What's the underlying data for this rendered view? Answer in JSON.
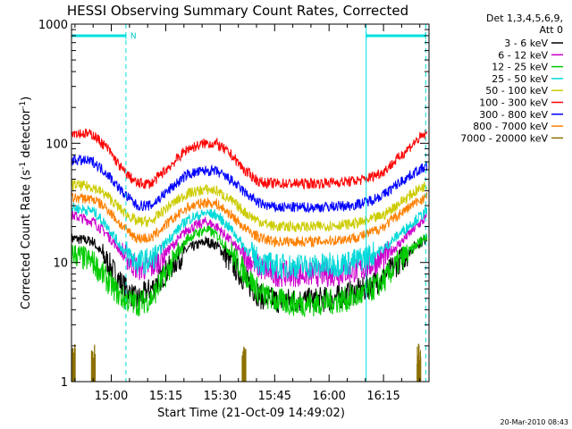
{
  "chart_data": {
    "type": "line",
    "title": "HESSI Observing Summary Count Rates, Corrected",
    "xlabel": "Start Time (21-Oct-09 14:49:02)",
    "ylabel_main": "Corrected Count Rate (s",
    "ylabel_sup1": "-1",
    "ylabel_mid": " detector",
    "ylabel_sup2": "-1",
    "ylabel_end": ")",
    "y_scale": "log",
    "ylim": [
      1,
      1000
    ],
    "xlim_minutes": [
      0,
      98.5
    ],
    "grid": false,
    "legend_placement": "right-outside",
    "footer_date": "20-Mar-2010 08:43",
    "legend_header": [
      "Det 1,3,4,5,6,9,",
      "Att 0"
    ],
    "x_ticks": [
      {
        "label": "15:00",
        "minutes": 10.97
      },
      {
        "label": "15:15",
        "minutes": 25.97
      },
      {
        "label": "15:30",
        "minutes": 40.97
      },
      {
        "label": "15:45",
        "minutes": 55.97
      },
      {
        "label": "16:00",
        "minutes": 70.97
      },
      {
        "label": "16:15",
        "minutes": 85.97
      }
    ],
    "y_ticks": [
      {
        "label": "1",
        "value": 1
      },
      {
        "label": "10",
        "value": 10
      },
      {
        "label": "100",
        "value": 100
      },
      {
        "label": "1000",
        "value": 1000
      }
    ],
    "night_boundaries_minutes": [
      0,
      15,
      81.2,
      97.6
    ],
    "flag_bars": [
      {
        "start_minutes": 0,
        "end_minutes": 15,
        "label": "N"
      },
      {
        "start_minutes": 81.2,
        "end_minutes": 97.6,
        "label": ""
      }
    ],
    "series": [
      {
        "name": "3 - 6 keV",
        "color": "#000000",
        "points": [
          [
            0,
            16
          ],
          [
            6,
            15
          ],
          [
            10,
            10
          ],
          [
            14,
            6.5
          ],
          [
            18,
            4.8
          ],
          [
            22,
            6
          ],
          [
            27,
            9
          ],
          [
            32,
            13
          ],
          [
            37,
            15
          ],
          [
            40,
            14
          ],
          [
            44,
            10
          ],
          [
            48,
            7
          ],
          [
            52,
            5.2
          ],
          [
            56,
            4.8
          ],
          [
            62,
            4.8
          ],
          [
            67,
            4.8
          ],
          [
            72,
            5
          ],
          [
            77,
            5.5
          ],
          [
            81,
            6
          ],
          [
            86,
            7.5
          ],
          [
            90,
            10
          ],
          [
            95,
            14
          ],
          [
            98,
            16
          ]
        ]
      },
      {
        "name": "6 - 12 keV",
        "color": "#cc00cc",
        "points": [
          [
            0,
            25
          ],
          [
            6,
            22
          ],
          [
            10,
            17
          ],
          [
            14,
            12
          ],
          [
            18,
            9
          ],
          [
            22,
            9
          ],
          [
            27,
            13
          ],
          [
            32,
            19
          ],
          [
            37,
            22
          ],
          [
            40,
            20
          ],
          [
            44,
            15
          ],
          [
            48,
            11
          ],
          [
            52,
            9
          ],
          [
            56,
            8
          ],
          [
            62,
            8
          ],
          [
            67,
            8
          ],
          [
            72,
            8
          ],
          [
            77,
            8.5
          ],
          [
            81,
            9
          ],
          [
            86,
            11
          ],
          [
            90,
            14
          ],
          [
            95,
            20
          ],
          [
            98,
            24
          ]
        ]
      },
      {
        "name": "12 - 25 keV",
        "color": "#00cc00",
        "points": [
          [
            0,
            12
          ],
          [
            6,
            10
          ],
          [
            10,
            7
          ],
          [
            14,
            5
          ],
          [
            18,
            4.5
          ],
          [
            22,
            5
          ],
          [
            27,
            9
          ],
          [
            32,
            16
          ],
          [
            37,
            19
          ],
          [
            40,
            17
          ],
          [
            44,
            12
          ],
          [
            48,
            8
          ],
          [
            52,
            5.5
          ],
          [
            56,
            4.8
          ],
          [
            62,
            4.5
          ],
          [
            67,
            4.5
          ],
          [
            72,
            4.7
          ],
          [
            77,
            5
          ],
          [
            81,
            5.5
          ],
          [
            86,
            7
          ],
          [
            90,
            10
          ],
          [
            95,
            14
          ],
          [
            98,
            17
          ]
        ]
      },
      {
        "name": "25 - 50 keV",
        "color": "#00d8d8",
        "points": [
          [
            0,
            29
          ],
          [
            6,
            27
          ],
          [
            10,
            20
          ],
          [
            14,
            13
          ],
          [
            18,
            10
          ],
          [
            22,
            10.5
          ],
          [
            27,
            16
          ],
          [
            32,
            23
          ],
          [
            37,
            26
          ],
          [
            40,
            25
          ],
          [
            44,
            19
          ],
          [
            48,
            13
          ],
          [
            52,
            10
          ],
          [
            56,
            9.3
          ],
          [
            62,
            9.3
          ],
          [
            67,
            9.3
          ],
          [
            72,
            9.5
          ],
          [
            77,
            10
          ],
          [
            81,
            11
          ],
          [
            86,
            13
          ],
          [
            90,
            17
          ],
          [
            95,
            23
          ],
          [
            98,
            27
          ]
        ]
      },
      {
        "name": "50 - 100 keV",
        "color": "#cccc00",
        "points": [
          [
            0,
            45
          ],
          [
            6,
            43
          ],
          [
            10,
            36
          ],
          [
            14,
            27
          ],
          [
            18,
            22
          ],
          [
            22,
            22
          ],
          [
            27,
            30
          ],
          [
            32,
            38
          ],
          [
            37,
            41
          ],
          [
            40,
            40
          ],
          [
            44,
            33
          ],
          [
            48,
            26
          ],
          [
            52,
            22
          ],
          [
            56,
            20
          ],
          [
            62,
            20
          ],
          [
            67,
            20
          ],
          [
            72,
            20.5
          ],
          [
            77,
            21
          ],
          [
            81,
            22
          ],
          [
            86,
            25
          ],
          [
            90,
            31
          ],
          [
            95,
            40
          ],
          [
            98,
            45
          ]
        ]
      },
      {
        "name": "100 - 300 keV",
        "color": "#ff0000",
        "points": [
          [
            0,
            125
          ],
          [
            6,
            118
          ],
          [
            10,
            90
          ],
          [
            14,
            60
          ],
          [
            18,
            46
          ],
          [
            22,
            46
          ],
          [
            27,
            64
          ],
          [
            32,
            90
          ],
          [
            37,
            100
          ],
          [
            40,
            99
          ],
          [
            44,
            80
          ],
          [
            48,
            58
          ],
          [
            52,
            47
          ],
          [
            56,
            46
          ],
          [
            62,
            46
          ],
          [
            67,
            46
          ],
          [
            72,
            47
          ],
          [
            77,
            48
          ],
          [
            81,
            50
          ],
          [
            86,
            58
          ],
          [
            90,
            75
          ],
          [
            95,
            105
          ],
          [
            98,
            122
          ]
        ]
      },
      {
        "name": "300 - 800 keV",
        "color": "#0000ff",
        "points": [
          [
            0,
            73
          ],
          [
            6,
            70
          ],
          [
            10,
            55
          ],
          [
            14,
            39
          ],
          [
            18,
            30
          ],
          [
            22,
            30
          ],
          [
            27,
            41
          ],
          [
            32,
            55
          ],
          [
            37,
            59
          ],
          [
            40,
            58
          ],
          [
            44,
            49
          ],
          [
            48,
            38
          ],
          [
            52,
            31
          ],
          [
            56,
            29
          ],
          [
            62,
            29
          ],
          [
            67,
            29
          ],
          [
            72,
            29.5
          ],
          [
            77,
            30
          ],
          [
            81,
            32
          ],
          [
            86,
            37
          ],
          [
            90,
            46
          ],
          [
            95,
            58
          ],
          [
            98,
            64
          ]
        ]
      },
      {
        "name": "800 - 7000 keV",
        "color": "#ff8000",
        "points": [
          [
            0,
            35
          ],
          [
            6,
            34
          ],
          [
            10,
            28
          ],
          [
            14,
            20
          ],
          [
            18,
            16
          ],
          [
            22,
            16
          ],
          [
            27,
            22
          ],
          [
            32,
            29
          ],
          [
            37,
            32
          ],
          [
            40,
            31
          ],
          [
            44,
            25
          ],
          [
            48,
            19
          ],
          [
            52,
            16
          ],
          [
            56,
            15
          ],
          [
            62,
            15
          ],
          [
            67,
            15
          ],
          [
            72,
            15.3
          ],
          [
            77,
            16
          ],
          [
            81,
            17
          ],
          [
            86,
            20
          ],
          [
            90,
            25
          ],
          [
            95,
            32
          ],
          [
            98,
            36
          ]
        ]
      },
      {
        "name": "7000 - 20000 keV",
        "color": "#8c7000",
        "points": [
          [
            0,
            2
          ],
          [
            5.5,
            2
          ],
          [
            47,
            1.9
          ],
          [
            95.2,
            2
          ]
        ]
      }
    ]
  }
}
